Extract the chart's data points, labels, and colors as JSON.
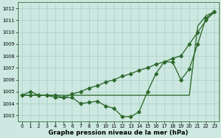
{
  "x": [
    0,
    1,
    2,
    3,
    4,
    5,
    6,
    7,
    8,
    9,
    10,
    11,
    12,
    13,
    14,
    15,
    16,
    17,
    18,
    19,
    20,
    21,
    22,
    23
  ],
  "line1": [
    1004.7,
    1005.0,
    1004.7,
    1004.7,
    1004.5,
    1004.5,
    1004.5,
    1004.0,
    1004.1,
    1004.2,
    1003.8,
    1003.6,
    1002.9,
    1002.9,
    1003.3,
    1005.0,
    1006.5,
    1007.5,
    1007.5,
    1006.0,
    1006.9,
    1009.0,
    1011.2,
    1011.7
  ],
  "line2": [
    1004.7,
    1004.7,
    1004.7,
    1004.7,
    1004.7,
    1004.5,
    1004.8,
    1005.0,
    1005.3,
    1005.5,
    1005.8,
    1006.0,
    1006.3,
    1006.5,
    1006.8,
    1007.0,
    1007.3,
    1007.5,
    1007.8,
    1008.0,
    1009.0,
    1010.0,
    1011.0,
    1011.7
  ],
  "line3": [
    1004.7,
    1004.7,
    1004.7,
    1004.7,
    1004.7,
    1004.7,
    1004.7,
    1004.7,
    1004.7,
    1004.7,
    1004.7,
    1004.7,
    1004.7,
    1004.7,
    1004.7,
    1004.7,
    1004.7,
    1004.7,
    1004.7,
    1004.7,
    1004.7,
    1010.5,
    1011.4,
    1011.7
  ],
  "line_color": "#2d6a2d",
  "bg_color": "#cce8e0",
  "grid_color": "#a8ccc4",
  "xlabel_text": "Graphe pression niveau de la mer (hPa)",
  "ylim": [
    1002.5,
    1012.5
  ],
  "xlim": [
    -0.5,
    23.5
  ],
  "yticks": [
    1003,
    1004,
    1005,
    1006,
    1007,
    1008,
    1009,
    1010,
    1011,
    1012
  ],
  "xticks": [
    0,
    1,
    2,
    3,
    4,
    5,
    6,
    7,
    8,
    9,
    10,
    11,
    12,
    13,
    14,
    15,
    16,
    17,
    18,
    19,
    20,
    21,
    22,
    23
  ],
  "marker": "D",
  "markersize": 2.5,
  "linewidth": 1.0,
  "xlabel_fontsize": 6.5,
  "tick_fontsize": 5.0,
  "fig_width": 3.2,
  "fig_height": 2.0,
  "dpi": 100
}
